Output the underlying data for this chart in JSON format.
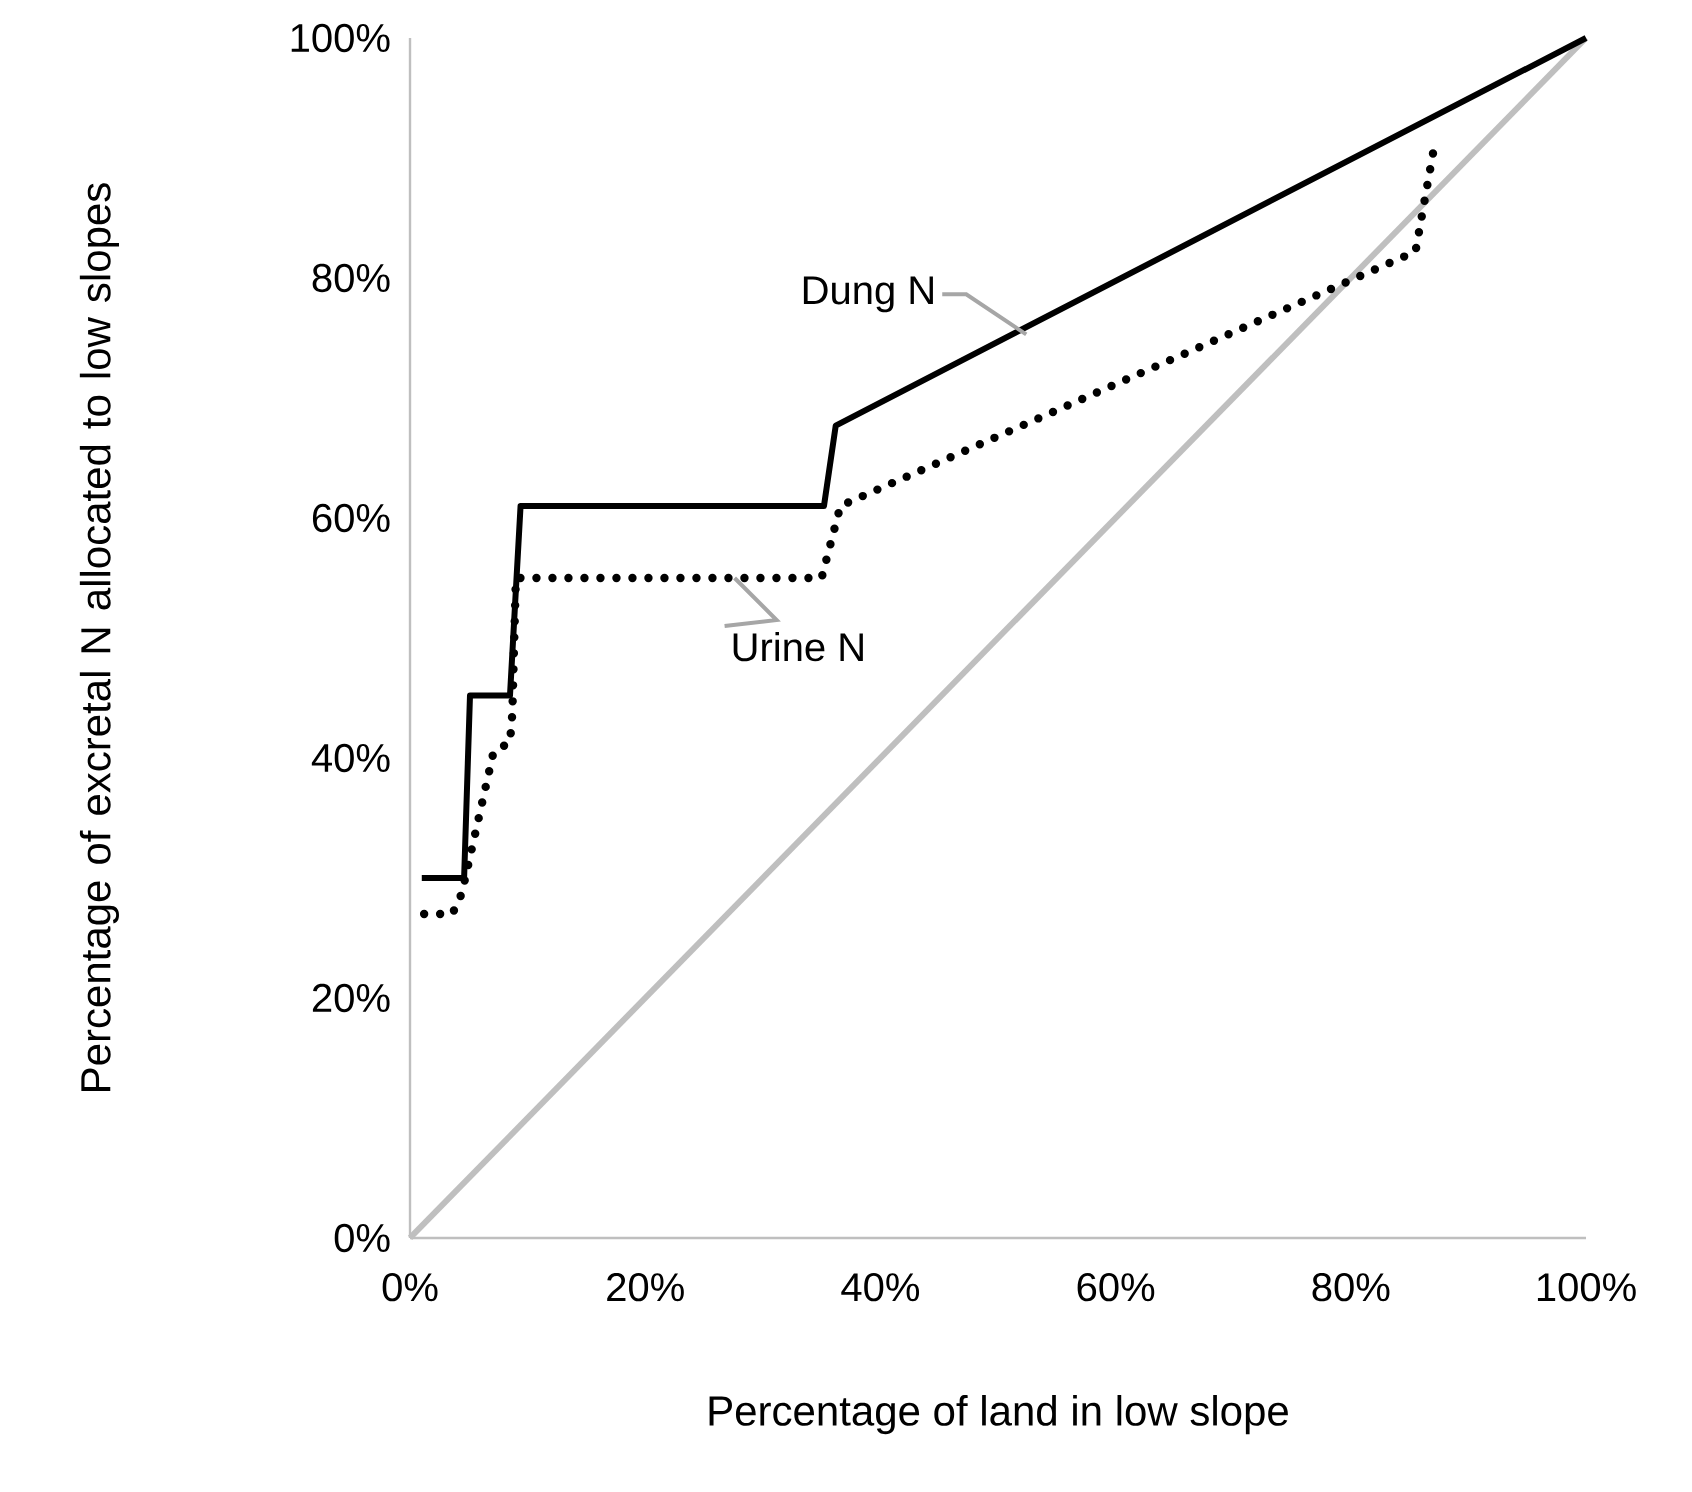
{
  "chart_data": {
    "type": "line",
    "xlabel": "Percentage of land in low slope",
    "ylabel": "Percentage of excretal N allocated to low slopes",
    "xlim": [
      0,
      100
    ],
    "ylim": [
      0,
      100
    ],
    "xticks": [
      {
        "value": 0,
        "label": "0%"
      },
      {
        "value": 20,
        "label": "20%"
      },
      {
        "value": 40,
        "label": "40%"
      },
      {
        "value": 60,
        "label": "60%"
      },
      {
        "value": 80,
        "label": "80%"
      },
      {
        "value": 100,
        "label": "100%"
      }
    ],
    "yticks": [
      {
        "value": 0,
        "label": "0%"
      },
      {
        "value": 20,
        "label": "20%"
      },
      {
        "value": 40,
        "label": "40%"
      },
      {
        "value": 60,
        "label": "60%"
      },
      {
        "value": 80,
        "label": "80%"
      },
      {
        "value": 100,
        "label": "100%"
      }
    ],
    "series": [
      {
        "color": "#bfbfbf",
        "line_style": "solid",
        "x": [
          0,
          100
        ],
        "values": [
          0,
          100
        ]
      },
      {
        "color": "#000000",
        "line_style": "dotted",
        "x": [
          1.2,
          3.6,
          4.4,
          7.1,
          8.5,
          8.7,
          9.0,
          35.0,
          36.6,
          85.5,
          87.1
        ],
        "values": [
          27,
          27,
          28.7,
          40.5,
          41.3,
          43.7,
          55,
          55,
          61,
          82.2,
          91
        ]
      },
      {
        "color": "#000000",
        "line_style": "solid",
        "x": [
          1.0,
          4.6,
          5.1,
          8.5,
          9.4,
          35.2,
          36.2,
          100
        ],
        "values": [
          30,
          30,
          45.2,
          45.2,
          61,
          61,
          67.7,
          100
        ]
      }
    ],
    "annotations": [
      {
        "text": "Dung N",
        "x": 52.4,
        "y": 75.3
      },
      {
        "text": "Urine N",
        "x": 27.6,
        "y": 55
      }
    ]
  }
}
